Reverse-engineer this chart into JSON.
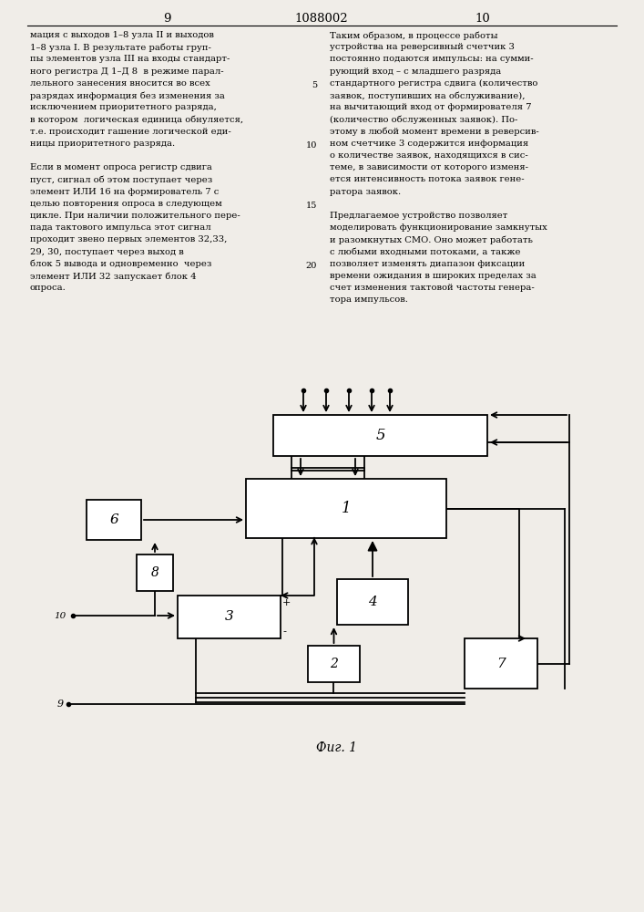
{
  "page_numbers": [
    "9",
    "10"
  ],
  "patent_number": "1088002",
  "left_text": [
    "мация с выходов 1–8 узла II и выходов",
    "1–8 узла I. В результате работы груп-",
    "пы элементов узла III на входы стандарт-",
    "ного регистра Д 1–Д 8  в режиме парал-",
    "лельного занесения вносится во всех",
    "разрядах информация без изменения за",
    "исключением приоритетного разряда,",
    "в котором  логическая единица обнуляется,",
    "т.е. происходит гашение логической еди-",
    "ницы приоритетного разряда.",
    "",
    "Если в момент опроса регистр сдвига",
    "пуст, сигнал об этом поступает через",
    "элемент ИЛИ 16 на формирователь 7 с",
    "целью повторения опроса в следующем",
    "цикле. При наличии положительного пере-",
    "пада тактового импульса этот сигнал",
    "проходит звено первых элементов 32,33,",
    "29, 30, поступает через выход в",
    "блок 5 вывода и одновременно  через",
    "элемент ИЛИ 32 запускает блок 4",
    "опроса."
  ],
  "right_text": [
    "Таким образом, в процессе работы",
    "устройства на реверсивный счетчик 3",
    "постоянно подаются импульсы: на сумми-",
    "рующий вход – с младшего разряда",
    "стандартного регистра сдвига (количество",
    "заявок, поступивших на обслуживание),",
    "на вычитающий вход от формирователя 7",
    "(количество обслуженных заявок). По-",
    "этому в любой момент времени в реверсив-",
    "ном счетчике 3 содержится информация",
    "о количестве заявок, находящихся в сис-",
    "теме, в зависимости от которого изменя-",
    "ется интенсивность потока заявок гене-",
    "ратора заявок.",
    "",
    "Предлагаемое устройство позволяет",
    "моделировать функционирование замкнутых",
    "и разомкнутых СМО. Оно может работать",
    "с любыми входными потоками, а также",
    "позволяет изменять диапазон фиксации",
    "времени ожидания в широких пределах за",
    "счет изменения тактовой частоты генера-",
    "тора импульсов."
  ],
  "bg": "#f0ede8",
  "lw": 1.3,
  "boxes": {
    "5": [
      300,
      455,
      535,
      500
    ],
    "1": [
      270,
      525,
      490,
      590
    ],
    "6": [
      95,
      548,
      155,
      592
    ],
    "8": [
      150,
      608,
      190,
      648
    ],
    "3": [
      195,
      653,
      308,
      700
    ],
    "4": [
      370,
      635,
      448,
      685
    ],
    "2": [
      338,
      708,
      395,
      748
    ],
    "7": [
      510,
      700,
      590,
      755
    ]
  }
}
